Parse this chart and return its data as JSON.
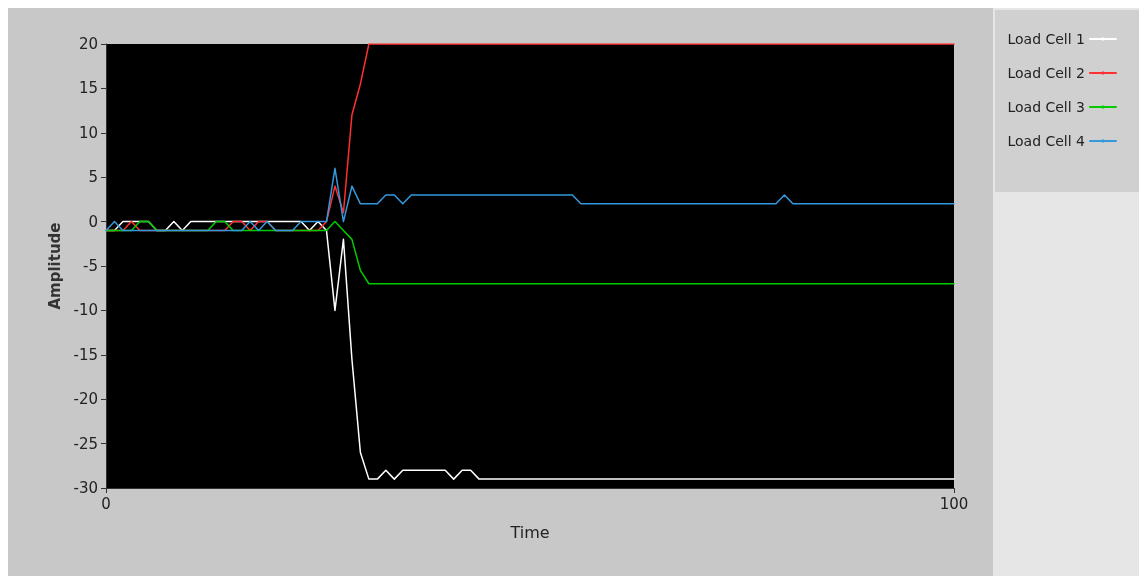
{
  "chart_data": {
    "type": "line",
    "xlabel": "Time",
    "ylabel": "Amplitude",
    "xlim": [
      0,
      100
    ],
    "xticks": [
      0,
      100
    ],
    "ylim": [
      -30,
      20
    ],
    "yticks": [
      -30,
      -25,
      -20,
      -15,
      -10,
      -5,
      0,
      5,
      10,
      15,
      20
    ],
    "grid": false,
    "legend": "top right",
    "marker": "none",
    "line_style": "solid",
    "series": [
      {
        "name": "Load Cell 1",
        "color": "#ffffff",
        "x": [
          0,
          1,
          2,
          5,
          6,
          7,
          8,
          9,
          10,
          23,
          24,
          25,
          26,
          27,
          28,
          29,
          30,
          31,
          32,
          33,
          34,
          35,
          40,
          41,
          42,
          43,
          44,
          100
        ],
        "values": [
          -1,
          -1,
          0,
          0,
          -1,
          -1,
          0,
          -1,
          0,
          0,
          -1,
          0,
          -1,
          -10,
          -2,
          -15.5,
          -26,
          -29,
          -29,
          -28,
          -29,
          -28,
          -28,
          -29,
          -28,
          -28,
          -29,
          -29
        ]
      },
      {
        "name": "Load Cell 2",
        "color": "#ff3030",
        "x": [
          0,
          2,
          3,
          4,
          14,
          15,
          16,
          17,
          18,
          19,
          20,
          25,
          26,
          27,
          28,
          29,
          30,
          31,
          100
        ],
        "values": [
          -1,
          -1,
          0,
          -1,
          -1,
          0,
          0,
          -1,
          0,
          0,
          -1,
          -1,
          0,
          4,
          1,
          12,
          15.5,
          20,
          20
        ]
      },
      {
        "name": "Load Cell 3",
        "color": "#00cc00",
        "x": [
          0,
          3,
          4,
          5,
          6,
          12,
          13,
          14,
          15,
          26,
          27,
          28,
          29,
          30,
          31,
          100
        ],
        "values": [
          -1,
          -1,
          0,
          0,
          -1,
          -1,
          0,
          0,
          -1,
          -1,
          0,
          -1,
          -2,
          -5.5,
          -7,
          -7
        ]
      },
      {
        "name": "Load Cell 4",
        "color": "#3399dd",
        "x": [
          0,
          1,
          2,
          16,
          17,
          18,
          19,
          20,
          22,
          23,
          25,
          26,
          27,
          28,
          29,
          30,
          32,
          33,
          34,
          35,
          36,
          55,
          56,
          79,
          80,
          81,
          100
        ],
        "values": [
          -1,
          0,
          -1,
          -1,
          0,
          -1,
          0,
          -1,
          -1,
          0,
          0,
          0,
          6,
          0,
          4,
          2,
          2,
          3,
          3,
          2,
          3,
          3,
          2,
          2,
          3,
          2,
          2
        ]
      }
    ]
  }
}
